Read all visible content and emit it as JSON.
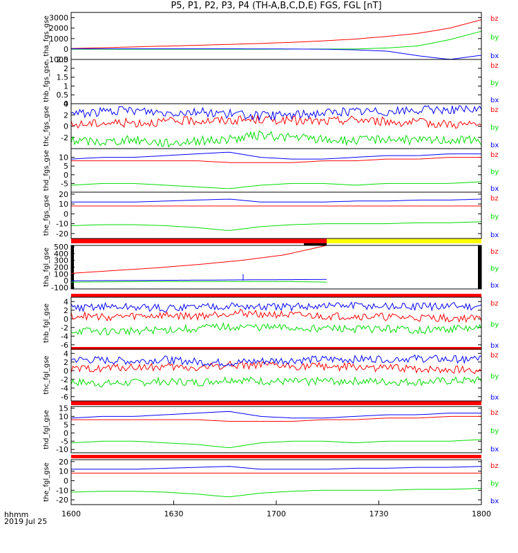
{
  "title": "P5, P1, P2, P3, P4 (TH-A,B,C,D,E) FGS, FGL [nT]",
  "footer": {
    "time_label": "hhmm",
    "date_label": "2019 Jul 25"
  },
  "colors": {
    "bx": "#0000ff",
    "by": "#00dd00",
    "bz": "#ff0000",
    "bar_red": "#ff0000",
    "bar_yellow": "#ffff00",
    "bar_black": "#000000"
  },
  "chart_data": {
    "type": "line",
    "x_ticks": [
      "1600",
      "1630",
      "1700",
      "1730",
      "1800"
    ],
    "legend": [
      "bz",
      "by",
      "bx"
    ],
    "panels": [
      {
        "ylabel": "tha_fgs_gse",
        "ylim": [
          -1000,
          3500
        ],
        "yticks": [
          -1000,
          0,
          1000,
          2000,
          3000
        ],
        "series": [
          {
            "name": "bx",
            "values": [
              20,
              20,
              20,
              20,
              20,
              20,
              10,
              0,
              -20,
              -80,
              -200,
              -650,
              -1000,
              -600
            ]
          },
          {
            "name": "by",
            "values": [
              -20,
              -20,
              -20,
              -20,
              -20,
              -20,
              -20,
              -10,
              0,
              0,
              100,
              300,
              900,
              1700
            ]
          },
          {
            "name": "bz",
            "values": [
              50,
              120,
              200,
              280,
              360,
              440,
              530,
              640,
              780,
              950,
              1200,
              1500,
              2000,
              2800
            ]
          }
        ]
      },
      {
        "ylabel": "thb_fgs_gse",
        "ylim": [
          0,
          2.5
        ],
        "yticks": [
          0,
          0.5,
          1,
          1.5,
          2,
          2.5
        ],
        "series": []
      },
      {
        "ylabel": "thc_fgs_gse",
        "ylim": [
          -4,
          4
        ],
        "yticks": [
          -2,
          0,
          2,
          4
        ],
        "noise": 0.8,
        "series": [
          {
            "name": "bx",
            "values": [
              2.2,
              2.6,
              2.8,
              2.4,
              2.6,
              2.2,
              1.8,
              2.0,
              2.4,
              2.6,
              2.6,
              2.8,
              3.0,
              2.8
            ]
          },
          {
            "name": "by",
            "values": [
              -2.6,
              -2.8,
              -2.4,
              -3.0,
              -2.6,
              -2.4,
              -1.6,
              -2.0,
              -2.4,
              -2.6,
              -2.2,
              -2.6,
              -2.4,
              -2.6
            ]
          },
          {
            "name": "bz",
            "values": [
              0.2,
              0.6,
              0.6,
              0.8,
              1.0,
              1.0,
              1.2,
              1.0,
              0.8,
              1.2,
              0.8,
              0.6,
              0.4,
              0.2
            ]
          }
        ]
      },
      {
        "ylabel": "thd_fgs_gse",
        "ylim": [
          -10,
          15
        ],
        "yticks": [
          -5,
          0,
          5,
          10
        ],
        "series": [
          {
            "name": "bx",
            "values": [
              9,
              10,
              10,
              11,
              12,
              13,
              10,
              9,
              9,
              10,
              11,
              11,
              12,
              12
            ]
          },
          {
            "name": "by",
            "values": [
              -6,
              -5,
              -5,
              -6,
              -7,
              -8,
              -6,
              -5,
              -5,
              -6,
              -5,
              -5,
              -5,
              -4
            ]
          },
          {
            "name": "bz",
            "values": [
              8,
              8,
              8,
              8,
              8,
              7,
              7,
              7,
              8,
              8,
              9,
              9,
              10,
              10
            ]
          }
        ]
      },
      {
        "ylabel": "the_fgs_gse",
        "ylim": [
          -25,
          22
        ],
        "yticks": [
          -20,
          -10,
          0,
          10,
          20
        ],
        "series": [
          {
            "name": "bx",
            "values": [
              12,
              12,
              12,
              13,
              14,
              15,
              12,
              12,
              12,
              13,
              13,
              14,
              14,
              15
            ]
          },
          {
            "name": "by",
            "values": [
              -12,
              -11,
              -11,
              -12,
              -14,
              -17,
              -13,
              -11,
              -10,
              -10,
              -10,
              -9,
              -9,
              -8
            ]
          },
          {
            "name": "bz",
            "values": [
              8,
              8,
              8,
              8,
              8,
              8,
              8,
              8,
              8,
              8,
              8,
              8,
              8,
              8
            ]
          }
        ]
      },
      {
        "ylabel": "tha_fgl_gse",
        "ylim": [
          -120,
          520
        ],
        "yticks": [
          -100,
          0,
          100,
          200,
          300,
          400,
          500
        ],
        "series": [
          {
            "name": "bx",
            "values": [
              0,
              3,
              6,
              9,
              13,
              16,
              19
            ]
          },
          {
            "name": "by",
            "values": [
              -20,
              -15,
              -10,
              -10,
              -10,
              -10,
              -20
            ]
          },
          {
            "name": "bz",
            "values": [
              110,
              150,
              190,
              240,
              300,
              380,
              520
            ]
          }
        ]
      },
      {
        "ylabel": "thb_fgl_gse",
        "ylim": [
          -7,
          5
        ],
        "yticks": [
          -6,
          -4,
          -2,
          0,
          2,
          4
        ],
        "noise": 0.9,
        "series": [
          {
            "name": "bx",
            "values": [
              2.6,
              2.8,
              2.6,
              2.4,
              2.8,
              3.0,
              2.6,
              2.8,
              3.0,
              3.0,
              2.8,
              2.8,
              3.0,
              2.8
            ]
          },
          {
            "name": "by",
            "values": [
              -2.8,
              -3.0,
              -2.8,
              -2.6,
              -2.2,
              -1.8,
              -2.0,
              -2.2,
              -2.2,
              -2.4,
              -2.4,
              -2.6,
              -2.4,
              -2.2
            ]
          },
          {
            "name": "bz",
            "values": [
              0.8,
              0.4,
              0.6,
              0.8,
              0.6,
              1.4,
              1.2,
              0.8,
              0.6,
              0.6,
              0.4,
              0.2,
              0.2,
              0.0
            ]
          }
        ]
      },
      {
        "ylabel": "thc_fgl_gse",
        "ylim": [
          -7,
          5
        ],
        "yticks": [
          -6,
          -4,
          -2,
          0,
          2,
          4
        ],
        "noise": 0.9,
        "series": [
          {
            "name": "bx",
            "values": [
              2.6,
              2.4,
              2.2,
              2.6,
              2.0,
              1.8,
              2.2,
              2.4,
              2.6,
              2.6,
              2.8,
              2.8,
              2.6,
              2.8
            ]
          },
          {
            "name": "by",
            "values": [
              -2.6,
              -3.0,
              -2.8,
              -2.4,
              -2.8,
              -2.0,
              -2.4,
              -2.6,
              -2.4,
              -2.4,
              -2.6,
              -2.6,
              -2.4,
              -2.2
            ]
          },
          {
            "name": "bz",
            "values": [
              0.2,
              0.6,
              0.8,
              0.8,
              0.6,
              1.4,
              1.2,
              1.0,
              1.0,
              0.8,
              0.6,
              0.4,
              0.2,
              0.2
            ]
          }
        ]
      },
      {
        "ylabel": "thd_fgl_gse",
        "ylim": [
          -12,
          16
        ],
        "yticks": [
          -10,
          -5,
          0,
          5,
          10,
          15
        ],
        "series": [
          {
            "name": "bx",
            "values": [
              9,
              10,
              10,
              11,
              12,
              13,
              10,
              9,
              9,
              10,
              11,
              11,
              12,
              12
            ]
          },
          {
            "name": "by",
            "values": [
              -6,
              -5,
              -5,
              -6,
              -7,
              -9,
              -6,
              -5,
              -5,
              -6,
              -5,
              -5,
              -5,
              -4
            ]
          },
          {
            "name": "bz",
            "values": [
              8,
              8,
              8,
              8,
              8,
              7,
              7,
              7,
              8,
              8,
              9,
              9,
              10,
              10
            ]
          }
        ]
      },
      {
        "ylabel": "the_fgl_gse",
        "ylim": [
          -25,
          22
        ],
        "yticks": [
          -20,
          -10,
          0,
          10,
          20
        ],
        "series": [
          {
            "name": "bx",
            "values": [
              12,
              12,
              12,
              13,
              14,
              15,
              12,
              12,
              12,
              13,
              13,
              14,
              14,
              15
            ]
          },
          {
            "name": "by",
            "values": [
              -12,
              -11,
              -11,
              -12,
              -14,
              -17,
              -13,
              -11,
              -10,
              -10,
              -10,
              -9,
              -9,
              -8
            ]
          },
          {
            "name": "bz",
            "values": [
              8,
              8,
              8,
              8,
              8,
              8,
              8,
              8,
              8,
              8,
              8,
              8,
              8,
              8
            ]
          }
        ]
      }
    ]
  }
}
